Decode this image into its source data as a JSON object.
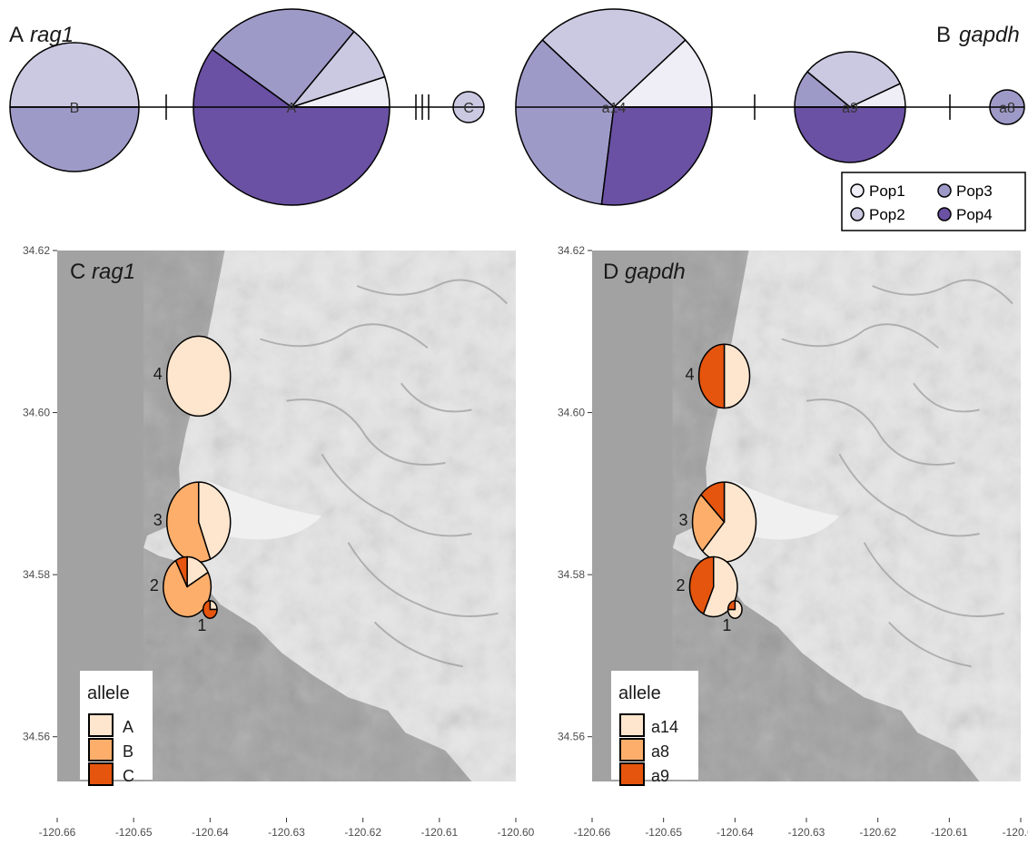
{
  "chart_data": [
    {
      "panel": "A",
      "gene": "rag1",
      "type": "haplotype-network",
      "haplotypes": [
        {
          "label": "B",
          "pops": {
            "Pop2": 0.5,
            "Pop3": 0.5
          }
        },
        {
          "label": "A",
          "pops": {
            "Pop1": 0.05,
            "Pop2": 0.09,
            "Pop3": 0.26,
            "Pop4": 0.6
          }
        },
        {
          "label": "C",
          "pops": {
            "Pop2": 1.0
          }
        }
      ],
      "links": [
        {
          "from": "B",
          "to": "A",
          "mutations": 1
        },
        {
          "from": "A",
          "to": "C",
          "mutations": 3
        }
      ]
    },
    {
      "panel": "B",
      "gene": "gapdh",
      "type": "haplotype-network",
      "haplotypes": [
        {
          "label": "a14",
          "pops": {
            "Pop1": 0.12,
            "Pop2": 0.26,
            "Pop3": 0.35,
            "Pop4": 0.27
          }
        },
        {
          "label": "a9",
          "pops": {
            "Pop1": 0.07,
            "Pop2": 0.32,
            "Pop3": 0.11,
            "Pop4": 0.5
          }
        },
        {
          "label": "a8",
          "pops": {
            "Pop3": 1.0
          }
        }
      ],
      "links": [
        {
          "from": "a14",
          "to": "a9",
          "mutations": 1
        },
        {
          "from": "a9",
          "to": "a8",
          "mutations": 1
        }
      ]
    },
    {
      "panel": "C",
      "gene": "rag1",
      "type": "map-pie",
      "xlim": [
        -120.66,
        -120.6
      ],
      "ylim": [
        34.55,
        34.62
      ],
      "sites": [
        {
          "site": "4",
          "lon": -120.6415,
          "lat": 34.6045,
          "n": 1.0,
          "alleles": {
            "A": 1.0,
            "B": 0.0,
            "C": 0.0
          }
        },
        {
          "site": "3",
          "lon": -120.6415,
          "lat": 34.5865,
          "n": 1.0,
          "alleles": {
            "A": 0.44,
            "B": 0.56,
            "C": 0.0
          }
        },
        {
          "site": "2",
          "lon": -120.643,
          "lat": 34.5785,
          "n": 0.75,
          "alleles": {
            "A": 0.17,
            "B": 0.75,
            "C": 0.08
          }
        },
        {
          "site": "1",
          "lon": -120.64,
          "lat": 34.5757,
          "n": 0.22,
          "alleles": {
            "A": 0.25,
            "B": 0.0,
            "C": 0.75
          }
        }
      ]
    },
    {
      "panel": "D",
      "gene": "gapdh",
      "type": "map-pie",
      "xlim": [
        -120.66,
        -120.6
      ],
      "ylim": [
        34.55,
        34.62
      ],
      "sites": [
        {
          "site": "4",
          "lon": -120.6415,
          "lat": 34.6045,
          "n": 0.8,
          "alleles": {
            "a14": 0.5,
            "a8": 0.0,
            "a9": 0.5
          }
        },
        {
          "site": "3",
          "lon": -120.6415,
          "lat": 34.5865,
          "n": 1.0,
          "alleles": {
            "a14": 0.62,
            "a8": 0.25,
            "a9": 0.13
          }
        },
        {
          "site": "2",
          "lon": -120.643,
          "lat": 34.5785,
          "n": 0.75,
          "alleles": {
            "a14": 0.57,
            "a8": 0.0,
            "a9": 0.43
          }
        },
        {
          "site": "1",
          "lon": -120.64,
          "lat": 34.5757,
          "n": 0.22,
          "alleles": {
            "a14": 0.75,
            "a8": 0.0,
            "a9": 0.25
          }
        }
      ]
    }
  ],
  "panels": {
    "A": {
      "letter": "A",
      "gene": "rag1"
    },
    "B": {
      "letter": "B",
      "gene": "gapdh"
    },
    "C": {
      "letter": "C",
      "gene": "rag1"
    },
    "D": {
      "letter": "D",
      "gene": "gapdh"
    }
  },
  "pop_legend": {
    "items": [
      "Pop1",
      "Pop2",
      "Pop3",
      "Pop4"
    ],
    "colors": {
      "Pop1": "#efedf5",
      "Pop2": "#cbc9e2",
      "Pop3": "#9e9ac8",
      "Pop4": "#6a51a3"
    }
  },
  "allele_legend_c": {
    "title": "allele",
    "items": [
      "A",
      "B",
      "C"
    ]
  },
  "allele_legend_d": {
    "title": "allele",
    "items": [
      "a14",
      "a8",
      "a9"
    ]
  },
  "allele_colors": {
    "A": "#fee6ce",
    "B": "#fdae6b",
    "C": "#e6550d",
    "a14": "#fee6ce",
    "a8": "#fdae6b",
    "a9": "#e6550d"
  },
  "axes": {
    "x_ticks": [
      "-120.66",
      "-120.65",
      "-120.64",
      "-120.63",
      "-120.62",
      "-120.61",
      "-120.60"
    ],
    "y_ticks": [
      "34.62",
      "34.60",
      "34.58",
      "34.56"
    ]
  }
}
